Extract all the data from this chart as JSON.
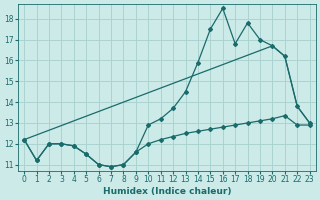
{
  "xlabel": "Humidex (Indice chaleur)",
  "bg_color": "#cceae8",
  "grid_color": "#aad4d0",
  "line_color": "#1a6b6b",
  "xlim_min": -0.5,
  "xlim_max": 23.5,
  "ylim_min": 10.7,
  "ylim_max": 18.7,
  "yticks": [
    11,
    12,
    13,
    14,
    15,
    16,
    17,
    18
  ],
  "xticks": [
    0,
    1,
    2,
    3,
    4,
    5,
    6,
    7,
    8,
    9,
    10,
    11,
    12,
    13,
    14,
    15,
    16,
    17,
    18,
    19,
    20,
    21,
    22,
    23
  ],
  "series1_x": [
    0,
    1,
    2,
    3,
    4,
    5,
    6,
    7,
    8,
    9,
    10,
    11,
    12,
    13,
    14,
    15,
    16,
    17,
    18,
    19,
    20,
    21,
    22,
    23
  ],
  "series1_y": [
    12.2,
    11.2,
    12.0,
    12.0,
    11.9,
    11.5,
    11.0,
    10.9,
    11.0,
    11.6,
    12.9,
    13.2,
    13.7,
    14.5,
    15.9,
    17.5,
    18.5,
    16.8,
    17.8,
    17.0,
    16.7,
    16.2,
    13.8,
    13.0
  ],
  "series2_x": [
    0,
    1,
    2,
    3,
    4,
    5,
    6,
    7,
    8,
    9,
    10,
    11,
    12,
    13,
    14,
    15,
    16,
    17,
    18,
    19,
    20,
    21,
    22,
    23
  ],
  "series2_y": [
    12.2,
    11.2,
    12.0,
    12.0,
    11.9,
    11.5,
    11.0,
    10.9,
    11.0,
    11.6,
    12.0,
    12.2,
    12.35,
    12.5,
    12.6,
    12.7,
    12.8,
    12.9,
    13.0,
    13.1,
    13.2,
    13.35,
    12.9,
    12.9
  ],
  "series3_x": [
    0,
    20,
    21,
    22,
    23
  ],
  "series3_y": [
    12.2,
    16.7,
    16.2,
    13.8,
    13.0
  ]
}
